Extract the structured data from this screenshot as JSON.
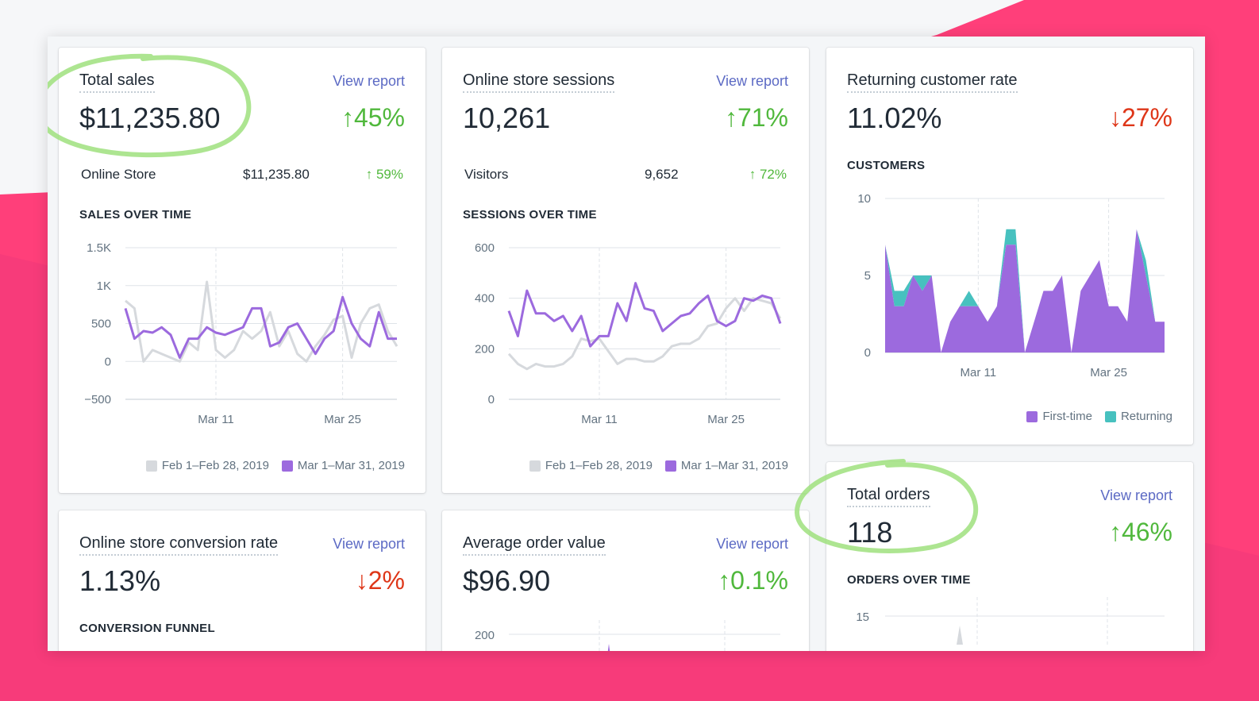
{
  "colors": {
    "accent_pink": "#ff3f7a",
    "prev_period": "#d6d9dd",
    "curr_period": "#9c6ade",
    "returning": "#47c1bf",
    "up": "#50b83c",
    "down": "#de3618",
    "link": "#5c6ac4"
  },
  "cards": {
    "total_sales": {
      "title": "Total sales",
      "link": "View report",
      "value": "$11,235.80",
      "delta": "↑45%",
      "breakdown_label": "Online Store",
      "breakdown_value": "$11,235.80",
      "breakdown_delta": "↑ 59%",
      "section": "SALES OVER TIME",
      "legend": [
        "Feb 1–Feb 28, 2019",
        "Mar 1–Mar 31, 2019"
      ]
    },
    "sessions": {
      "title": "Online store sessions",
      "link": "View report",
      "value": "10,261",
      "delta": "↑71%",
      "breakdown_label": "Visitors",
      "breakdown_value": "9,652",
      "breakdown_delta": "↑ 72%",
      "section": "SESSIONS OVER TIME",
      "legend": [
        "Feb 1–Feb 28, 2019",
        "Mar 1–Mar 31, 2019"
      ]
    },
    "returning": {
      "title": "Returning customer rate",
      "value": "11.02%",
      "delta": "↓27%",
      "section": "CUSTOMERS",
      "legend": [
        "First-time",
        "Returning"
      ]
    },
    "conversion": {
      "title": "Online store conversion rate",
      "link": "View report",
      "value": "1.13%",
      "delta": "↓2%",
      "section": "CONVERSION FUNNEL"
    },
    "aov": {
      "title": "Average order value",
      "link": "View report",
      "value": "$96.90",
      "delta": "↑0.1%"
    },
    "orders": {
      "title": "Total orders",
      "link": "View report",
      "value": "118",
      "delta": "↑46%",
      "section": "ORDERS OVER TIME"
    }
  },
  "chart_data": [
    {
      "type": "line",
      "name": "sales",
      "ylim": [
        -500,
        1500
      ],
      "yticks": [
        "1.5K",
        "1K",
        "500",
        "0",
        "−500"
      ],
      "ytick_values": [
        1500,
        1000,
        500,
        0,
        -500
      ],
      "xticks": [
        "Mar 11",
        "Mar 25"
      ],
      "xtick_index": [
        10,
        24
      ],
      "series": [
        {
          "name": "Feb 1–Feb 28, 2019",
          "values": [
            800,
            700,
            0,
            150,
            100,
            50,
            0,
            250,
            150,
            1050,
            150,
            50,
            150,
            400,
            300,
            400,
            650,
            200,
            400,
            100,
            0,
            200,
            350,
            550,
            600,
            50,
            500,
            700,
            750,
            400,
            200
          ]
        },
        {
          "name": "Mar 1–Mar 31, 2019",
          "values": [
            700,
            300,
            400,
            380,
            450,
            350,
            50,
            300,
            300,
            450,
            380,
            350,
            400,
            450,
            700,
            700,
            200,
            250,
            450,
            500,
            300,
            100,
            300,
            400,
            850,
            500,
            300,
            200,
            650,
            300,
            300
          ]
        }
      ]
    },
    {
      "type": "line",
      "name": "sessions",
      "ylim": [
        0,
        600
      ],
      "yticks": [
        "600",
        "400",
        "200",
        "0"
      ],
      "ytick_values": [
        600,
        400,
        200,
        0
      ],
      "xticks": [
        "Mar 11",
        "Mar 25"
      ],
      "xtick_index": [
        10,
        24
      ],
      "series": [
        {
          "name": "Feb 1–Feb 28, 2019",
          "values": [
            180,
            140,
            120,
            140,
            130,
            130,
            140,
            170,
            240,
            230,
            240,
            190,
            140,
            160,
            160,
            150,
            150,
            170,
            210,
            220,
            220,
            240,
            290,
            300,
            360,
            400,
            350,
            400,
            390,
            380,
            320
          ]
        },
        {
          "name": "Mar 1–Mar 31, 2019",
          "values": [
            350,
            250,
            430,
            340,
            340,
            310,
            330,
            270,
            330,
            210,
            250,
            250,
            380,
            310,
            460,
            360,
            350,
            270,
            300,
            330,
            340,
            380,
            410,
            310,
            290,
            310,
            400,
            390,
            410,
            400,
            300
          ]
        }
      ]
    },
    {
      "type": "area",
      "name": "customers",
      "ylim": [
        0,
        10
      ],
      "yticks": [
        "10",
        "5",
        "0"
      ],
      "ytick_values": [
        10,
        5,
        0
      ],
      "xticks": [
        "Mar 11",
        "Mar 25"
      ],
      "xtick_index": [
        10,
        24
      ],
      "series": [
        {
          "name": "First-time",
          "values": [
            7,
            3,
            3,
            5,
            4,
            5,
            0,
            2,
            3,
            3,
            3,
            2,
            3,
            7,
            7,
            0,
            2,
            4,
            4,
            5,
            0,
            4,
            5,
            6,
            3,
            3,
            2,
            8,
            5,
            2,
            2
          ]
        },
        {
          "name": "Returning",
          "values": [
            0,
            1,
            1,
            0,
            1,
            0,
            0,
            0,
            0,
            1,
            0,
            0,
            0,
            1,
            1,
            0,
            0,
            0,
            0,
            0,
            0,
            0,
            0,
            0,
            0,
            0,
            0,
            0,
            1,
            0,
            0
          ]
        }
      ]
    },
    {
      "type": "area",
      "name": "aov",
      "yticks": [
        "200"
      ]
    },
    {
      "type": "line",
      "name": "orders",
      "yticks": [
        "15"
      ]
    }
  ]
}
